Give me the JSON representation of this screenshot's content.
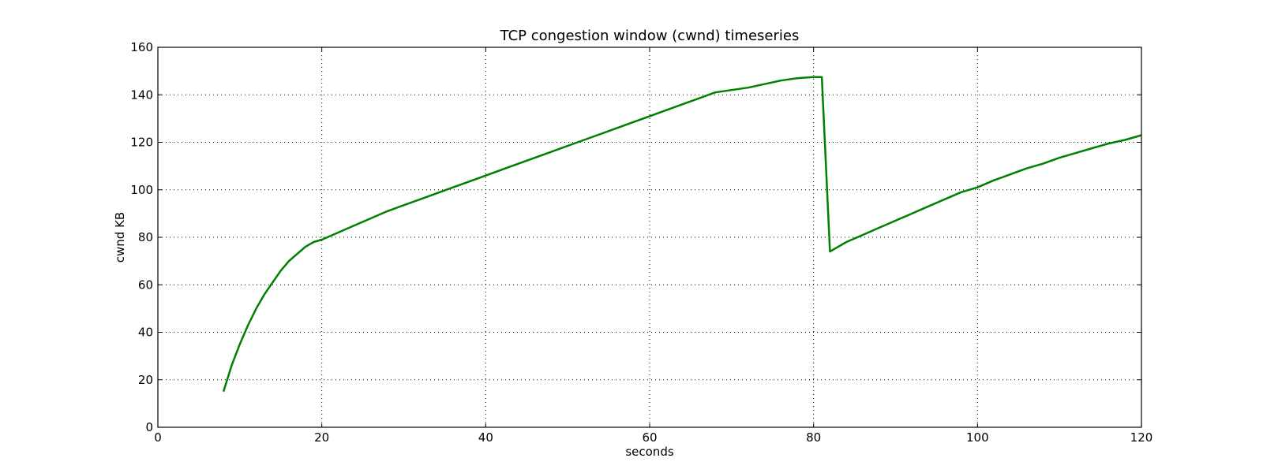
{
  "chart_data": {
    "type": "line",
    "title": "TCP congestion window (cwnd) timeseries",
    "xlabel": "seconds",
    "ylabel": "cwnd KB",
    "xlim": [
      0,
      120
    ],
    "ylim": [
      0,
      160
    ],
    "xticks": [
      0,
      20,
      40,
      60,
      80,
      100,
      120
    ],
    "yticks": [
      0,
      20,
      40,
      60,
      80,
      100,
      120,
      140,
      160
    ],
    "grid": true,
    "line_color": "#008000",
    "series": [
      {
        "x": [
          8,
          9,
          10,
          11,
          12,
          13,
          14,
          15,
          16,
          17,
          18,
          19,
          20,
          22,
          24,
          26,
          28,
          30,
          32,
          34,
          36,
          38,
          40,
          42,
          44,
          46,
          48,
          50,
          52,
          54,
          56,
          58,
          60,
          62,
          64,
          66,
          68,
          70,
          72,
          74,
          76,
          78,
          80,
          81,
          82,
          84,
          86,
          88,
          90,
          92,
          94,
          96,
          98,
          100,
          102,
          104,
          106,
          108,
          110,
          112,
          114,
          116,
          118,
          120
        ],
        "y": [
          15,
          26,
          35,
          43,
          50,
          56,
          61,
          66,
          70,
          73,
          76,
          78,
          79,
          82,
          85,
          88,
          91,
          93.5,
          96,
          98.5,
          101,
          103.5,
          106,
          108.5,
          111,
          113.5,
          116,
          118.5,
          121,
          123.5,
          126,
          128.5,
          131,
          133.5,
          136,
          138.5,
          141,
          142,
          143,
          144.5,
          146,
          147,
          147.5,
          147.5,
          74,
          78,
          81,
          84,
          87,
          90,
          93,
          96,
          99,
          101,
          104,
          106.5,
          109,
          111,
          113.5,
          115.5,
          117.5,
          119.5,
          121,
          123
        ]
      }
    ]
  }
}
